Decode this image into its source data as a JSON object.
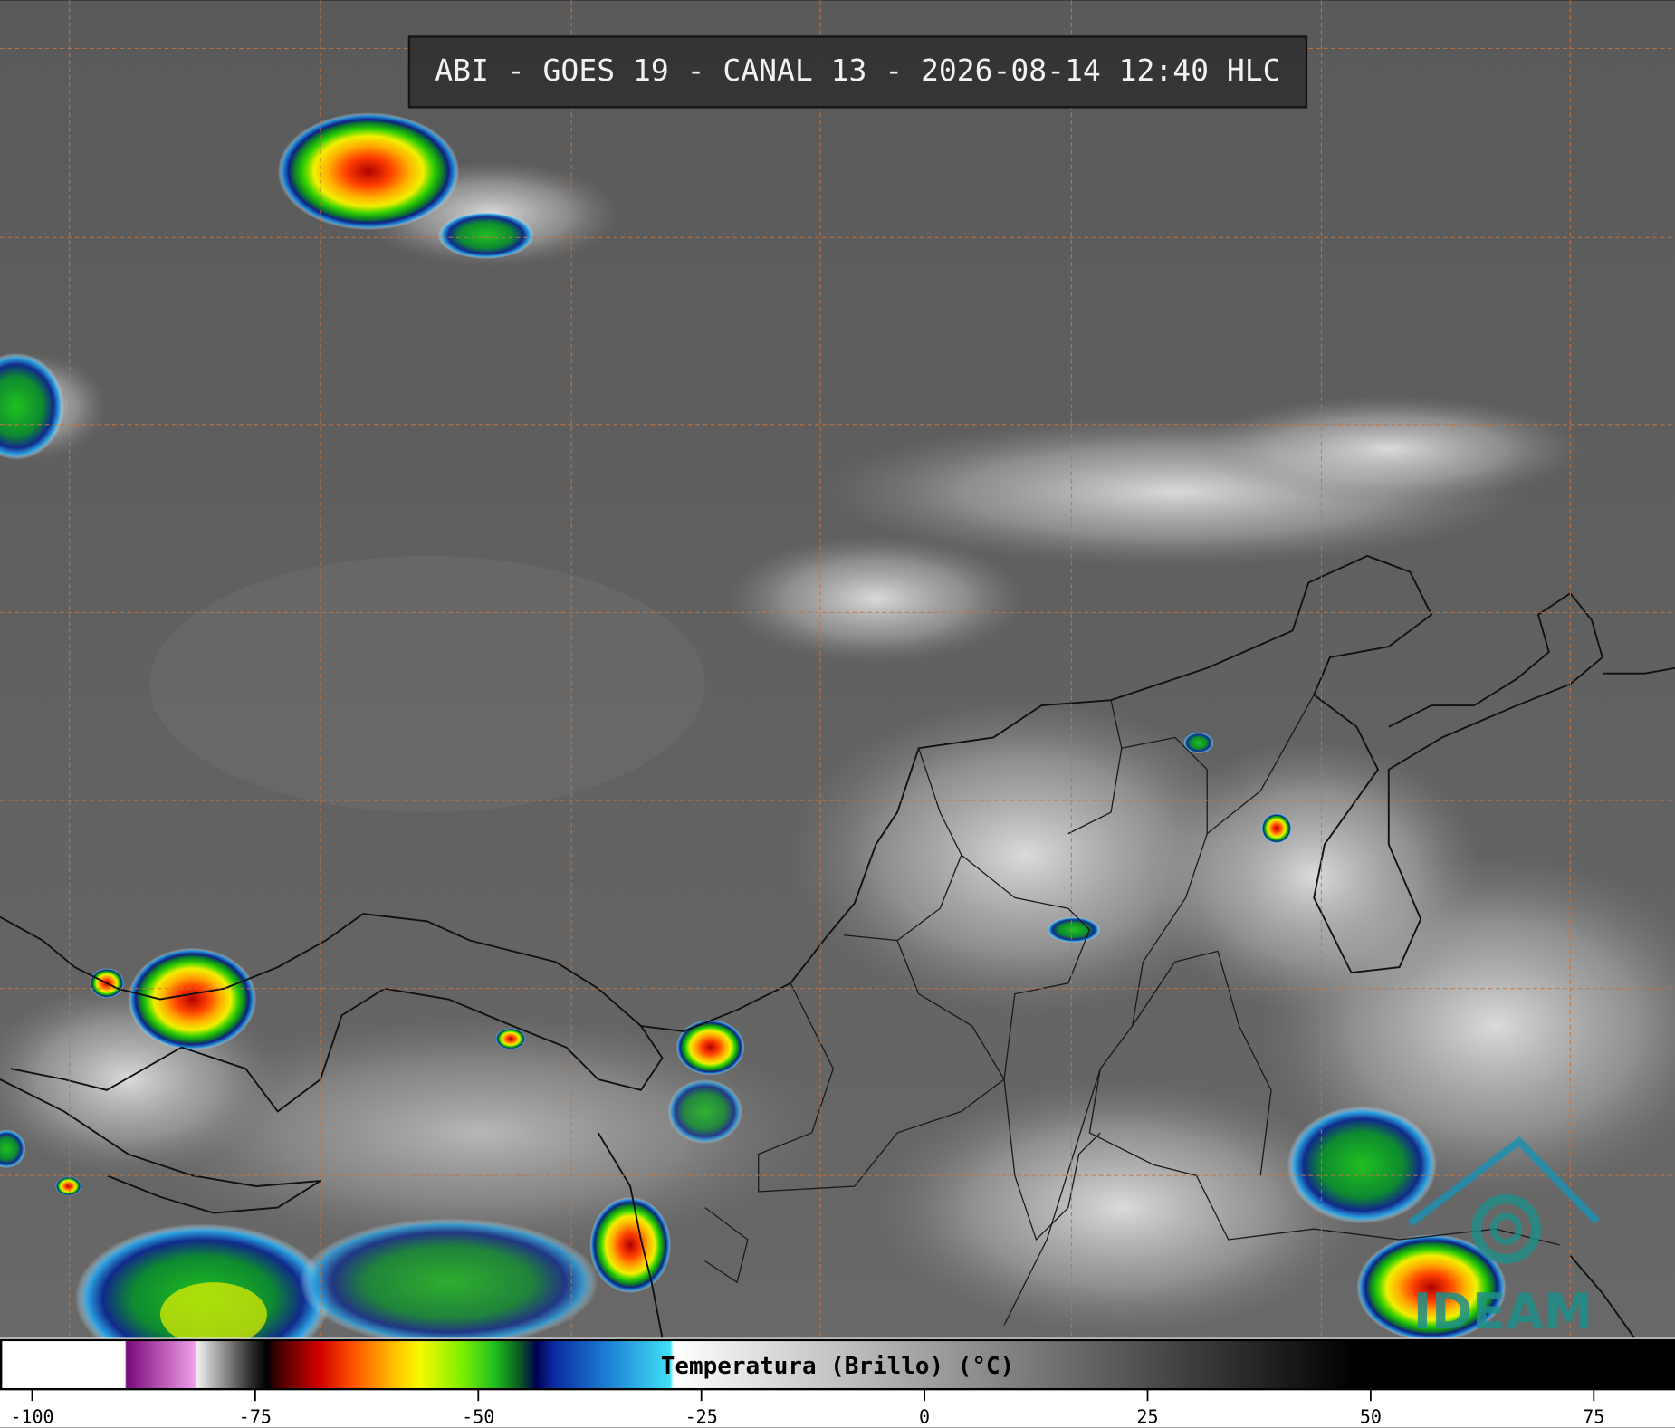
{
  "header": {
    "title": "ABI - GOES 19 - CANAL 13 - 2026-08-14 12:40 HLC"
  },
  "colorbar": {
    "label": "Temperatura (Brillo) (°C)",
    "lim": [
      -103.6,
      84.1
    ],
    "ticks": [
      -100,
      -75,
      -50,
      -25,
      0,
      25,
      50,
      75
    ]
  },
  "logo": {
    "text": "IDEAM"
  }
}
